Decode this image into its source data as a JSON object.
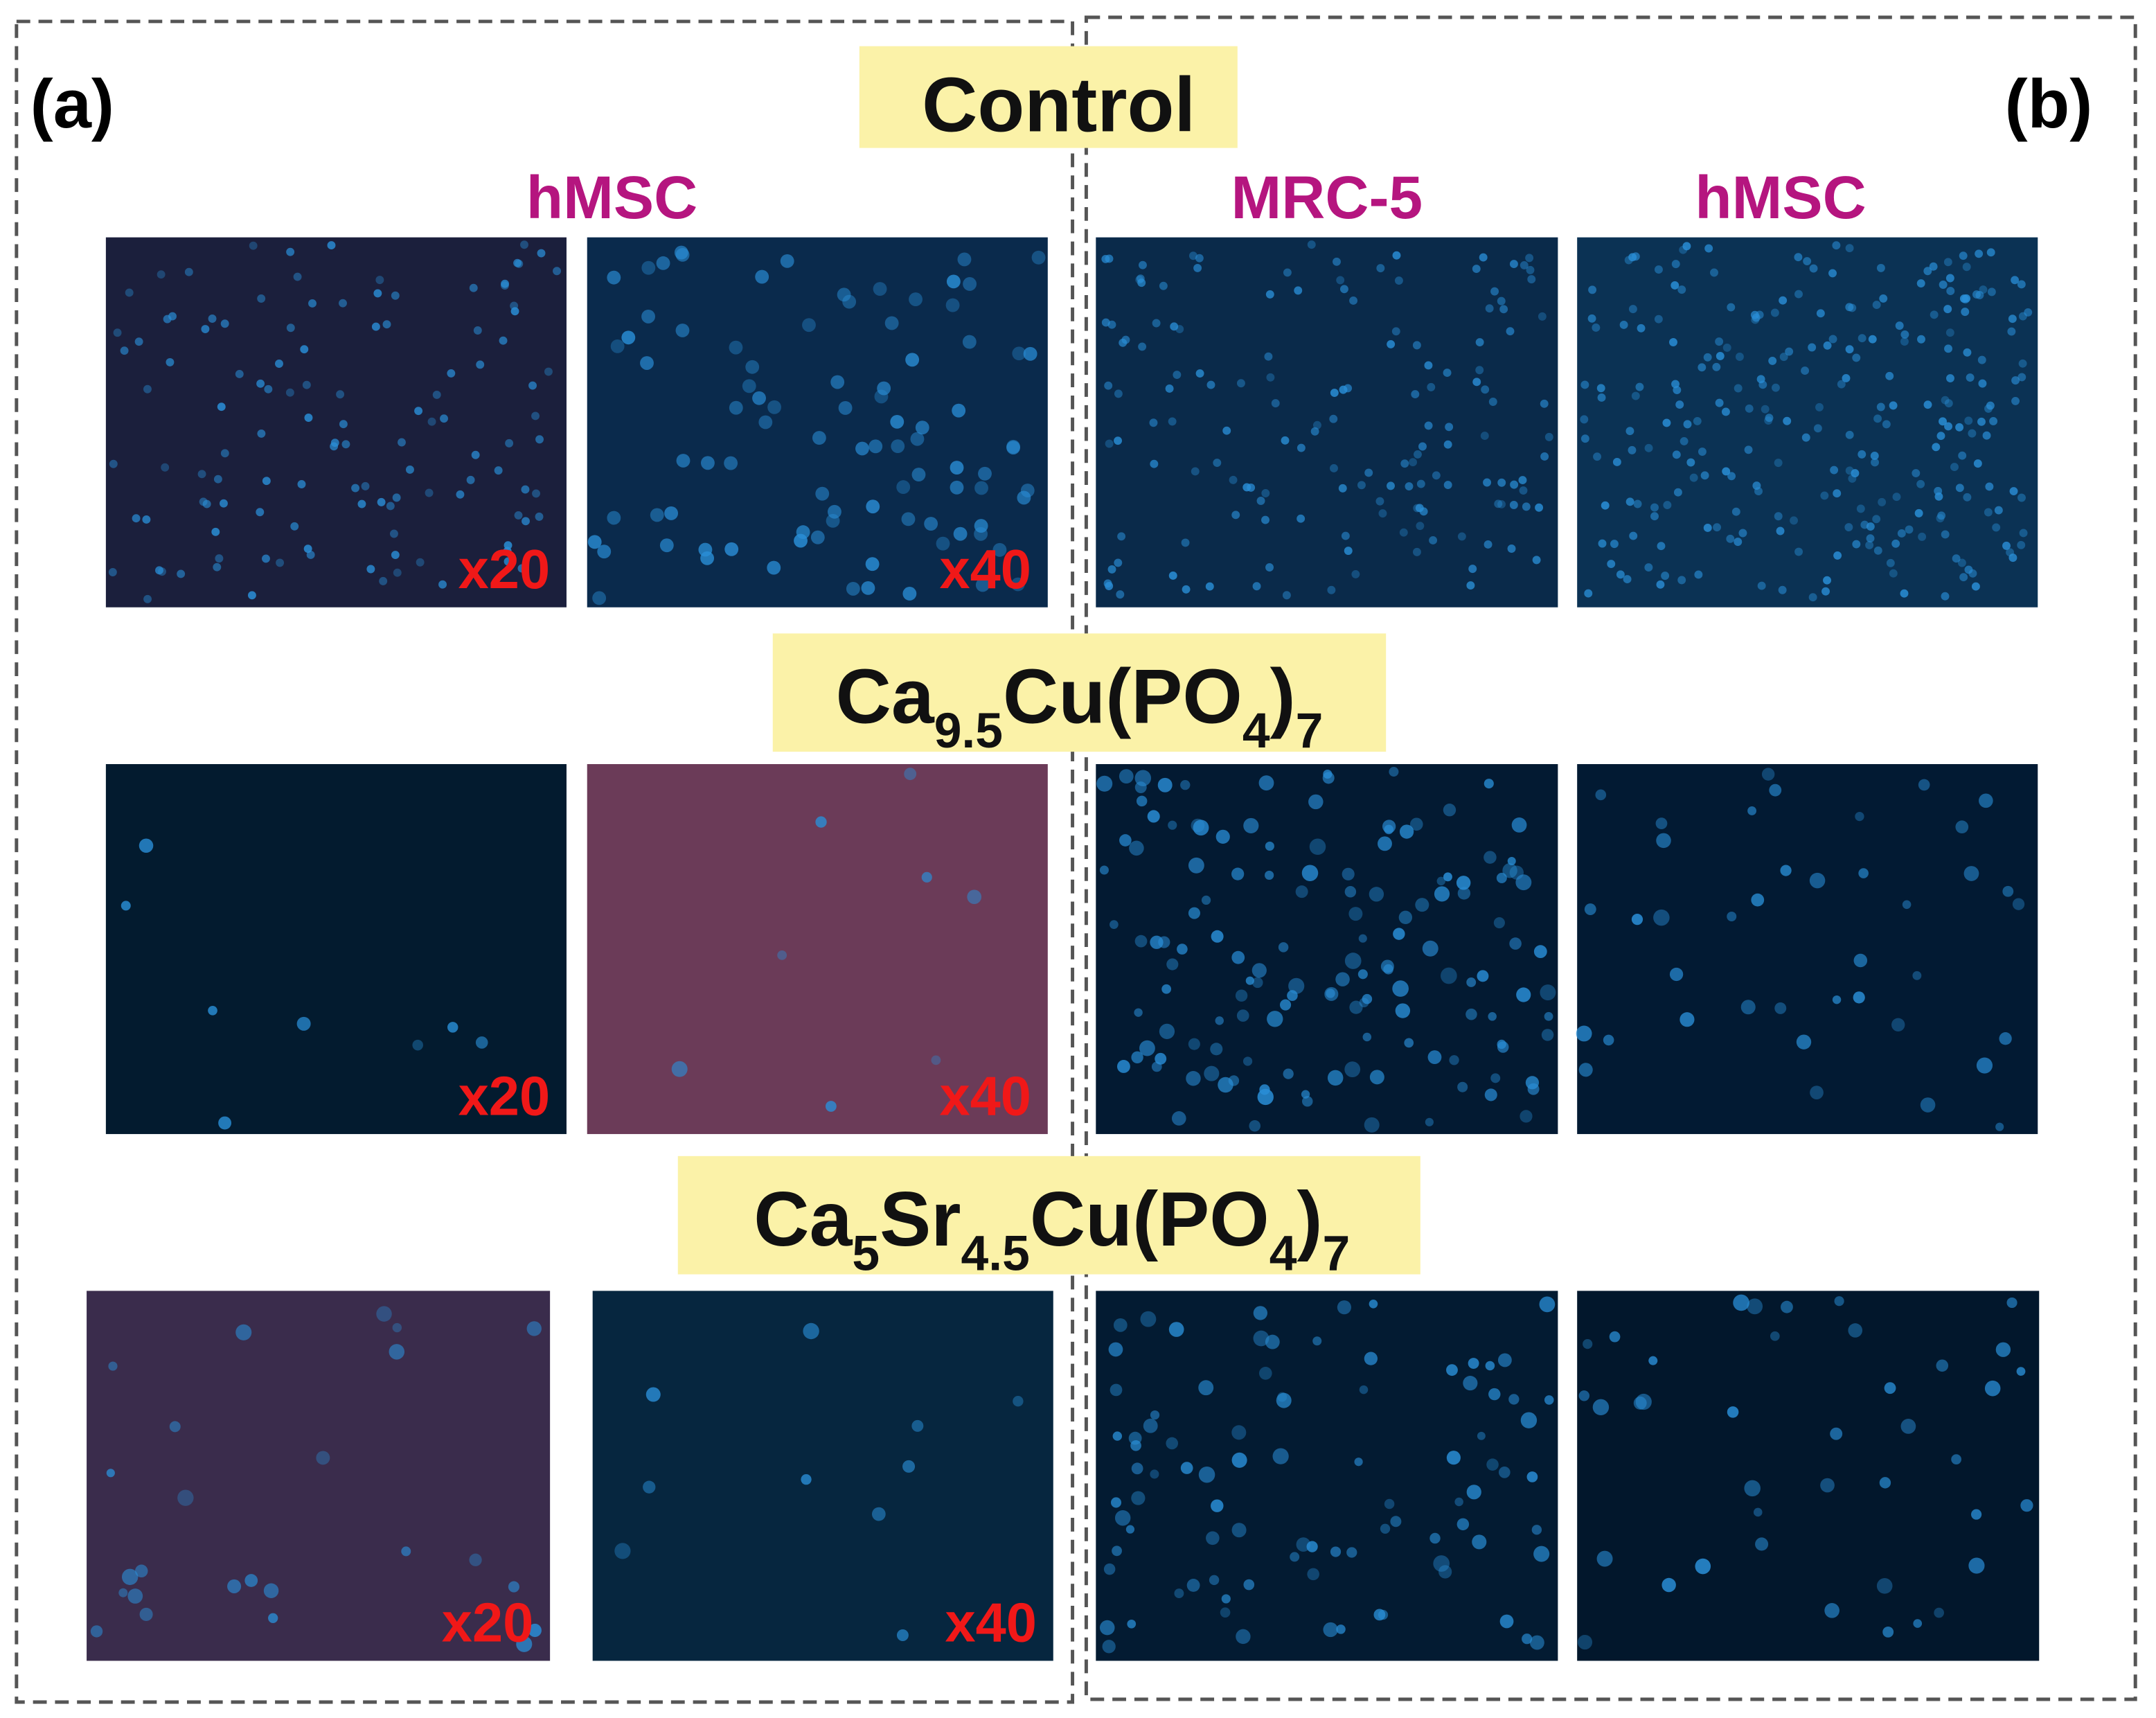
{
  "panels": [
    {
      "label": "(a)"
    },
    {
      "label": "(b)"
    }
  ],
  "columns": [
    "hMSC",
    "MRC-5",
    "hMSC"
  ],
  "rows": [
    {
      "title": [
        {
          "text": "Control"
        }
      ],
      "magnifications": [
        "x20",
        "x40"
      ]
    },
    {
      "title": [
        {
          "text": "Ca"
        },
        {
          "text": "9.5",
          "sub": true
        },
        {
          "text": "Cu(PO"
        },
        {
          "text": "4",
          "sub": true
        },
        {
          "text": ")"
        },
        {
          "text": "7",
          "sub": true
        }
      ],
      "magnifications": [
        "x20",
        "x40"
      ]
    },
    {
      "title": [
        {
          "text": "Ca"
        },
        {
          "text": "5",
          "sub": true
        },
        {
          "text": "Sr"
        },
        {
          "text": "4.5",
          "sub": true
        },
        {
          "text": "Cu(PO"
        },
        {
          "text": "4",
          "sub": true
        },
        {
          "text": ")"
        },
        {
          "text": "7",
          "sub": true
        }
      ],
      "magnifications": [
        "x20",
        "x40"
      ]
    }
  ]
}
